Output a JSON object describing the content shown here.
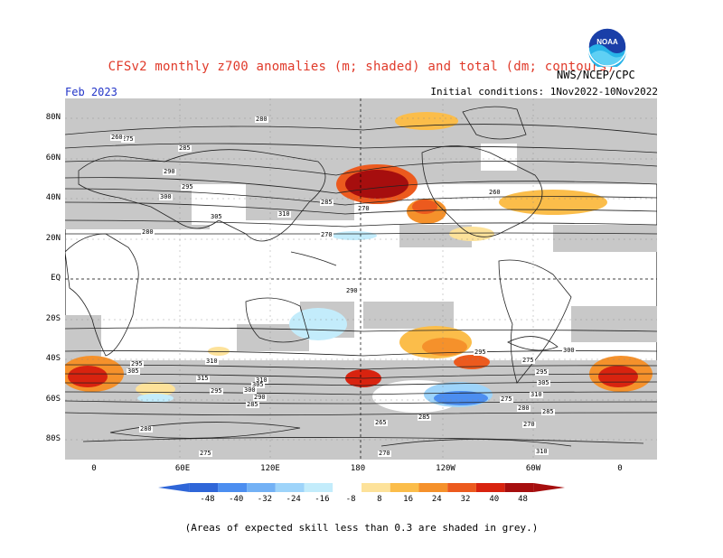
{
  "header": {
    "title": "CFSv2 monthly z700 anomalies (m; shaded) and total (dm; contours)",
    "agency": "NWS/NCEP/CPC",
    "logo_text": "NOAA",
    "month": "Feb 2023",
    "initial_conditions": "Initial conditions: 1Nov2022-10Nov2022"
  },
  "axes": {
    "lat_ticks": [
      "80N",
      "60N",
      "40N",
      "20N",
      "EQ",
      "20S",
      "40S",
      "60S",
      "80S"
    ],
    "lon_ticks": [
      "0",
      "60E",
      "120E",
      "180",
      "120W",
      "60W",
      "0"
    ]
  },
  "colorbar": {
    "ticks": [
      "-48",
      "-40",
      "-32",
      "-24",
      "-16",
      "-8",
      "8",
      "16",
      "24",
      "32",
      "40",
      "48"
    ],
    "colors": [
      "#2f66d8",
      "#4c8ef0",
      "#73b1f5",
      "#9ed4fa",
      "#c3ecfb",
      "#ffffff",
      "#fde29a",
      "#fbbd4a",
      "#f5912b",
      "#ec5a1e",
      "#d8230f",
      "#a60e0e"
    ]
  },
  "contour_labels": [
    "280",
    "275",
    "260",
    "285",
    "290",
    "295",
    "300",
    "305",
    "310",
    "270",
    "280",
    "295",
    "305",
    "310",
    "315",
    "310",
    "305",
    "300",
    "295",
    "290",
    "285",
    "280",
    "275",
    "270",
    "265",
    "285",
    "270",
    "310",
    "290",
    "295",
    "300",
    "295",
    "305",
    "310",
    "275",
    "285",
    "280",
    "275",
    "260",
    "270",
    "285"
  ],
  "footnote": "(Areas of expected skill less than 0.3 are shaded in grey.)",
  "colors": {
    "title": "#e03a2a",
    "month": "#2234c8",
    "grey_shade": "#c8c8c8",
    "contour": "#222222"
  }
}
